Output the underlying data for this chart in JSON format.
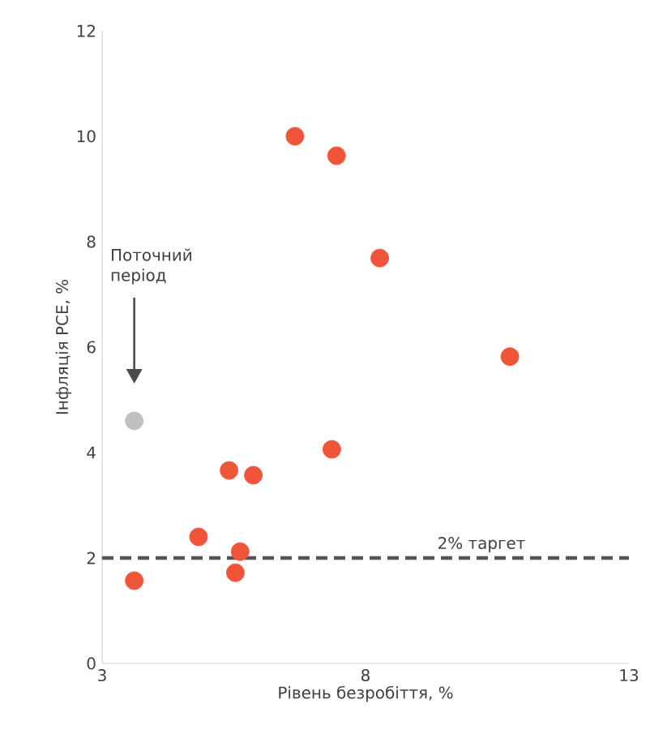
{
  "chart_data": {
    "type": "scatter",
    "xlabel": "Рівень безробіття, %",
    "ylabel": "Інфляція PCE, %",
    "xlim": [
      3,
      13
    ],
    "xticks": [
      3,
      8,
      13
    ],
    "ylim": [
      0,
      12
    ],
    "yticks": [
      0,
      2,
      4,
      6,
      8,
      10,
      12
    ],
    "grid": false,
    "series": [
      {
        "color": "#f0553a",
        "x": [
          6.66,
          7.45,
          8.27,
          10.74,
          7.36,
          5.41,
          5.87,
          4.83,
          5.62,
          5.53,
          3.61
        ],
        "values": [
          10.0,
          9.63,
          7.69,
          5.82,
          4.06,
          3.66,
          3.57,
          2.4,
          2.12,
          1.72,
          1.57
        ]
      },
      {
        "color": "#c0c0c0",
        "x": [
          3.61
        ],
        "values": [
          4.6
        ]
      }
    ],
    "ref_lines": [
      {
        "axis": "y",
        "value": 2,
        "label": "2% таргет",
        "color": "#555555",
        "line_style": "dashed"
      }
    ],
    "annotations": [
      "Поточний період"
    ]
  }
}
